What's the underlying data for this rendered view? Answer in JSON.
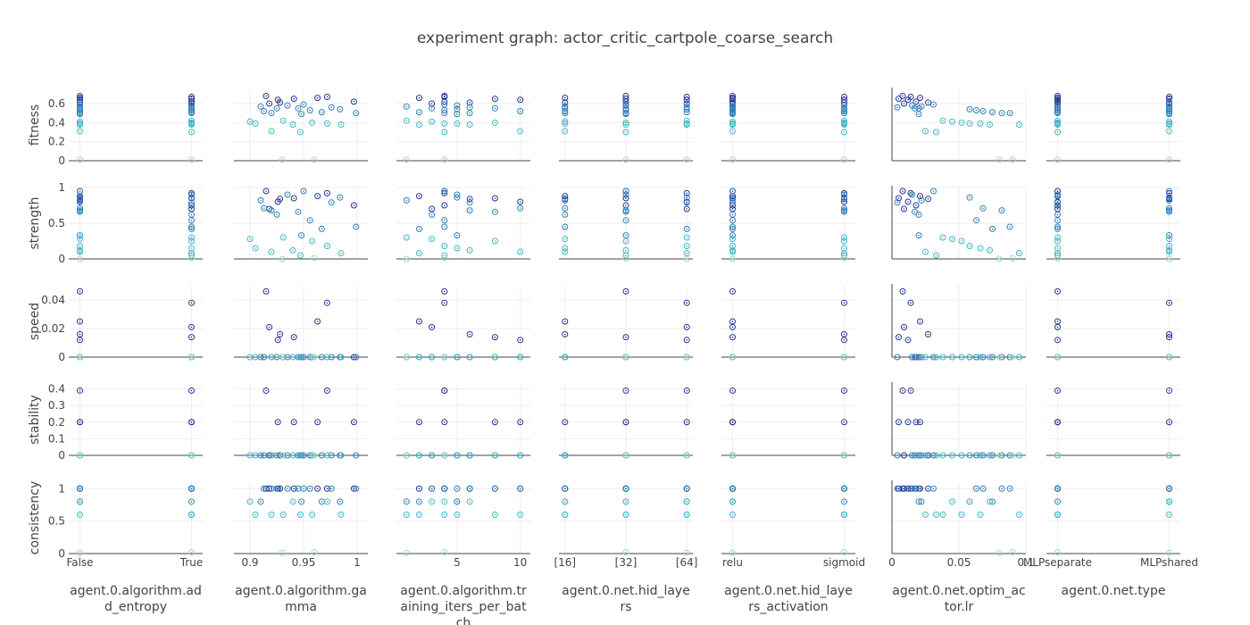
{
  "title": "experiment graph: actor_critic_cartpole_coarse_search",
  "chart_data": {
    "type": "scatter",
    "title": "experiment graph: actor_critic_cartpole_coarse_search",
    "marker": "circle-dot",
    "colorscale": [
      "#a1dab4",
      "#41b6c4",
      "#2c7fb8",
      "#253494"
    ],
    "color_by": "fitness",
    "grid": true,
    "columns": [
      {
        "key": "add_entropy",
        "label": "agent.0.algorithm.ad\nd_entropy",
        "kind": "category",
        "categories": [
          "False",
          "True"
        ],
        "range": [
          -0.1,
          1.1
        ],
        "ticks": [
          {
            "v": 0,
            "t": "False"
          },
          {
            "v": 1,
            "t": "True"
          }
        ]
      },
      {
        "key": "gamma",
        "label": "agent.0.algorithm.ga\nmma",
        "kind": "numeric",
        "range": [
          0.885,
          1.01
        ],
        "ticks": [
          {
            "v": 0.9,
            "t": "0.9"
          },
          {
            "v": 0.95,
            "t": "0.95"
          },
          {
            "v": 1,
            "t": "1"
          }
        ]
      },
      {
        "key": "training_iters",
        "label": "agent.0.algorithm.tr\naining_iters_per_bat\nch",
        "kind": "numeric",
        "range": [
          0.2,
          10.8
        ],
        "ticks": [
          {
            "v": 5,
            "t": "5"
          },
          {
            "v": 10,
            "t": "10"
          }
        ]
      },
      {
        "key": "hid_layers",
        "label": "agent.0.net.hid_laye\nrs",
        "kind": "category",
        "categories": [
          "[16]",
          "[32]",
          "[64]"
        ],
        "range": [
          -0.1,
          2.1
        ],
        "ticks": [
          {
            "v": 0,
            "t": "[16]"
          },
          {
            "v": 1,
            "t": "[32]"
          },
          {
            "v": 2,
            "t": "[64]"
          }
        ]
      },
      {
        "key": "hid_layers_activation",
        "label": "agent.0.net.hid_laye\nrs_activation",
        "kind": "category",
        "categories": [
          "relu",
          "sigmoid"
        ],
        "range": [
          -0.1,
          1.1
        ],
        "ticks": [
          {
            "v": 0,
            "t": "relu"
          },
          {
            "v": 1,
            "t": "sigmoid"
          }
        ]
      },
      {
        "key": "optim_lr",
        "label": "agent.0.net.optim_ac\ntor.lr",
        "kind": "numeric",
        "range": [
          0,
          0.1
        ],
        "zeroline": true,
        "ticks": [
          {
            "v": 0,
            "t": "0"
          },
          {
            "v": 0.05,
            "t": "0.05"
          },
          {
            "v": 0.1,
            "t": "0.1"
          }
        ]
      },
      {
        "key": "net_type",
        "label": "agent.0.net.type",
        "kind": "category",
        "categories": [
          "MLPseparate",
          "MLPshared"
        ],
        "range": [
          -0.1,
          1.1
        ],
        "ticks": [
          {
            "v": 0,
            "t": "MLPseparate"
          },
          {
            "v": 1,
            "t": "MLPshared"
          }
        ]
      }
    ],
    "rows": [
      {
        "key": "fitness",
        "label": "fitness",
        "range": [
          0,
          0.75
        ],
        "ticks": [
          {
            "v": 0,
            "t": "0"
          },
          {
            "v": 0.2,
            "t": "0.2"
          },
          {
            "v": 0.4,
            "t": "0.4"
          },
          {
            "v": 0.6,
            "t": "0.6"
          }
        ]
      },
      {
        "key": "strength",
        "label": "strength",
        "range": [
          0,
          1
        ],
        "ticks": [
          {
            "v": 0,
            "t": "0"
          },
          {
            "v": 0.5,
            "t": "0.5"
          },
          {
            "v": 1,
            "t": "1"
          }
        ]
      },
      {
        "key": "speed",
        "label": "speed",
        "range": [
          0,
          0.05
        ],
        "ticks": [
          {
            "v": 0,
            "t": "0"
          },
          {
            "v": 0.02,
            "t": "0.02"
          },
          {
            "v": 0.04,
            "t": "0.04"
          }
        ]
      },
      {
        "key": "stability",
        "label": "stability",
        "range": [
          0,
          0.43
        ],
        "ticks": [
          {
            "v": 0,
            "t": "0"
          },
          {
            "v": 0.1,
            "t": "0.1"
          },
          {
            "v": 0.2,
            "t": "0.2"
          },
          {
            "v": 0.3,
            "t": "0.3"
          },
          {
            "v": 0.4,
            "t": "0.4"
          }
        ]
      },
      {
        "key": "consistency",
        "label": "consistency",
        "range": [
          0,
          1.1
        ],
        "ticks": [
          {
            "v": 0,
            "t": "0"
          },
          {
            "v": 0.5,
            "t": "0.5"
          },
          {
            "v": 1,
            "t": "1"
          }
        ]
      }
    ],
    "trials": [
      [
        0,
        0.915,
        4,
        1,
        0,
        0.008,
        0,
        0.68,
        0.95,
        0.046,
        0.39,
        1
      ],
      [
        1,
        0.972,
        4,
        2,
        1,
        0.014,
        1,
        0.67,
        0.92,
        0.038,
        0.39,
        1
      ],
      [
        0,
        0.963,
        2,
        0,
        0,
        0.021,
        0,
        0.66,
        0.88,
        0.025,
        0.2,
        1
      ],
      [
        1,
        0.941,
        8,
        1,
        0,
        0.005,
        1,
        0.65,
        0.85,
        0.014,
        0.2,
        1
      ],
      [
        0,
        0.926,
        10,
        2,
        1,
        0.012,
        0,
        0.64,
        0.8,
        0.012,
        0.2,
        1
      ],
      [
        1,
        0.997,
        4,
        1,
        0,
        0.018,
        0,
        0.62,
        0.75,
        0.0,
        0.2,
        1
      ],
      [
        0,
        0.928,
        6,
        0,
        1,
        0.027,
        1,
        0.61,
        0.84,
        0.016,
        0.0,
        1
      ],
      [
        1,
        0.918,
        3,
        2,
        0,
        0.009,
        0,
        0.6,
        0.7,
        0.021,
        0.0,
        1
      ],
      [
        0,
        0.95,
        4,
        1,
        0,
        0.031,
        1,
        0.59,
        0.95,
        0.0,
        0.0,
        1
      ],
      [
        1,
        0.935,
        5,
        1,
        1,
        0.015,
        0,
        0.58,
        0.9,
        0.0,
        0.0,
        1
      ],
      [
        0,
        0.91,
        1,
        0,
        0,
        0.022,
        1,
        0.57,
        0.82,
        0.0,
        0.0,
        0.8
      ],
      [
        1,
        0.976,
        6,
        2,
        0,
        0.004,
        0,
        0.56,
        0.79,
        0.0,
        0.0,
        1
      ],
      [
        0,
        0.945,
        8,
        1,
        1,
        0.017,
        1,
        0.55,
        0.66,
        0.0,
        0.0,
        1
      ],
      [
        1,
        0.925,
        3,
        0,
        0,
        0.02,
        0,
        0.55,
        0.62,
        0.0,
        0.0,
        1
      ],
      [
        0,
        0.984,
        5,
        2,
        1,
        0.058,
        1,
        0.54,
        0.86,
        0.0,
        0.0,
        0.8
      ],
      [
        1,
        0.956,
        4,
        1,
        0,
        0.063,
        0,
        0.53,
        0.54,
        0.0,
        0.0,
        1
      ],
      [
        0,
        0.913,
        10,
        0,
        1,
        0.068,
        1,
        0.52,
        0.71,
        0.0,
        0.0,
        1
      ],
      [
        1,
        0.967,
        2,
        2,
        0,
        0.075,
        0,
        0.51,
        0.42,
        0.0,
        0.0,
        0.8
      ],
      [
        0,
        0.92,
        6,
        1,
        1,
        0.082,
        1,
        0.5,
        0.68,
        0.0,
        0.0,
        1
      ],
      [
        1,
        0.999,
        4,
        0,
        0,
        0.088,
        0,
        0.5,
        0.45,
        0.0,
        0.0,
        1
      ],
      [
        0,
        0.948,
        5,
        1,
        0,
        0.02,
        1,
        0.49,
        0.33,
        0.0,
        0.0,
        0.8
      ],
      [
        1,
        0.931,
        1,
        2,
        1,
        0.038,
        0,
        0.42,
        0.3,
        0.0,
        0.0,
        0.6
      ],
      [
        0,
        0.9,
        3,
        0,
        0,
        0.045,
        1,
        0.41,
        0.28,
        0.0,
        0.0,
        0.8
      ],
      [
        1,
        0.958,
        8,
        1,
        1,
        0.052,
        0,
        0.4,
        0.25,
        0.0,
        0.0,
        0.6
      ],
      [
        0,
        0.972,
        4,
        2,
        0,
        0.058,
        1,
        0.39,
        0.18,
        0.0,
        0.0,
        0.8
      ],
      [
        1,
        0.905,
        5,
        0,
        1,
        0.066,
        0,
        0.39,
        0.15,
        0.0,
        0.0,
        0.6
      ],
      [
        0,
        0.94,
        6,
        1,
        0,
        0.073,
        1,
        0.38,
        0.12,
        0.0,
        0.0,
        0.8
      ],
      [
        1,
        0.985,
        2,
        2,
        1,
        0.095,
        0,
        0.38,
        0.08,
        0.0,
        0.0,
        0.6
      ],
      [
        0,
        0.92,
        10,
        0,
        0,
        0.025,
        1,
        0.31,
        0.1,
        0.0,
        0.0,
        0.6
      ],
      [
        1,
        0.947,
        4,
        1,
        1,
        0.033,
        0,
        0.3,
        0.05,
        0.0,
        0.0,
        0.6
      ],
      [
        0,
        0.93,
        1,
        2,
        0,
        0.08,
        1,
        0.01,
        0.0,
        0.0,
        0.0,
        0.01
      ],
      [
        1,
        0.96,
        4,
        1,
        1,
        0.09,
        0,
        0.01,
        0.01,
        0.0,
        0.0,
        0.02
      ]
    ]
  }
}
